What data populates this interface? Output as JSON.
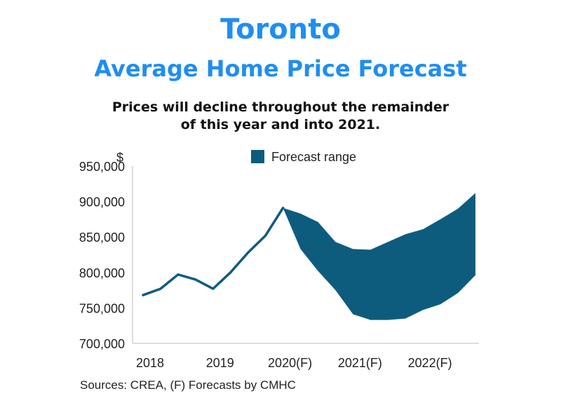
{
  "header": {
    "title": "Toronto",
    "subtitle": "Average Home Price Forecast",
    "description_line1": "Prices will decline throughout the remainder",
    "description_line2": "of this year and into 2021."
  },
  "footer": {
    "source": "Sources: CREA, (F) Forecasts by CMHC"
  },
  "chart_data": {
    "type": "line",
    "ylabel": "$",
    "ylim": [
      700000,
      950000
    ],
    "y_ticks": [
      "950,000",
      "900,000",
      "850,000",
      "800,000",
      "750,000",
      "700,000"
    ],
    "y_tick_values": [
      950000,
      900000,
      850000,
      800000,
      750000,
      700000
    ],
    "x_ticks": [
      "2018",
      "2019",
      "2020(F)",
      "2021(F)",
      "2022(F)"
    ],
    "x_tick_positions": [
      2018.0,
      2019.0,
      2020.0,
      2021.0,
      2022.0
    ],
    "xlim": [
      2017.85,
      2022.8
    ],
    "series": [
      {
        "x": [
          2018.0,
          2018.25,
          2018.5,
          2018.75,
          2019.0,
          2019.25,
          2019.5,
          2019.75,
          2020.0
        ],
        "values": [
          768000,
          777000,
          797000,
          790000,
          777000,
          800000,
          828000,
          852000,
          891000
        ]
      }
    ],
    "band": {
      "name": "Forecast range",
      "x": [
        2020.0,
        2020.25,
        2020.5,
        2020.75,
        2021.0,
        2021.25,
        2021.5,
        2021.75,
        2022.0,
        2022.25,
        2022.5,
        2022.75
      ],
      "upper": [
        891000,
        883000,
        871000,
        843000,
        833000,
        832000,
        843000,
        854000,
        861000,
        875000,
        890000,
        912000
      ],
      "lower": [
        891000,
        833000,
        802000,
        775000,
        741000,
        733000,
        733000,
        735000,
        747000,
        755000,
        771000,
        796000
      ]
    },
    "legend_position": "top-center",
    "grid": false,
    "colors": {
      "series": "#0d5c7e",
      "band": "#0d5c7e",
      "axis": "#dddddd"
    }
  }
}
